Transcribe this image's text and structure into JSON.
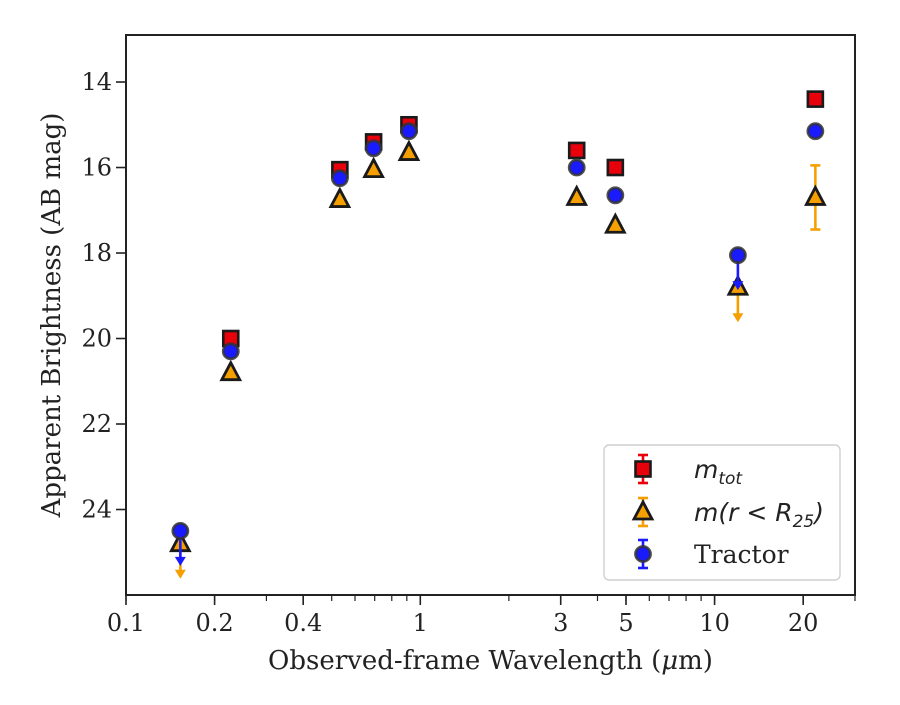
{
  "chart_data": {
    "type": "scatter",
    "xlabel": "Observed-frame Wavelength (μm)",
    "ylabel": "Apparent Brightness (AB mag)",
    "xscale": "log",
    "xlim": [
      0.1,
      30
    ],
    "ylim": [
      26.0,
      12.9
    ],
    "y_inverted": true,
    "x_ticks": [
      0.1,
      0.2,
      0.4,
      1,
      3,
      5,
      10,
      20
    ],
    "x_tick_labels": [
      "0.1",
      "0.2",
      "0.4",
      "1",
      "3",
      "5",
      "10",
      "20"
    ],
    "y_ticks": [
      14,
      16,
      18,
      20,
      22,
      24
    ],
    "y_tick_labels": [
      "14",
      "16",
      "18",
      "20",
      "22",
      "24"
    ],
    "grid": false,
    "legend_position": "lower-right",
    "series": [
      {
        "name": "m_tot",
        "legend_text": "m",
        "legend_sub": "tot",
        "marker": "square",
        "color": "#e8000b",
        "edge_color": "#1a1a1a",
        "points": [
          {
            "x": 0.227,
            "y": 20.0
          },
          {
            "x": 0.533,
            "y": 16.05
          },
          {
            "x": 0.694,
            "y": 15.4
          },
          {
            "x": 0.915,
            "y": 15.0
          },
          {
            "x": 3.4,
            "y": 15.6
          },
          {
            "x": 4.6,
            "y": 16.0
          },
          {
            "x": 22.0,
            "y": 14.4
          }
        ]
      },
      {
        "name": "m(r < R25)",
        "legend_text": "m(r < R",
        "legend_sub": "25",
        "marker": "triangle",
        "color": "#f5a000",
        "edge_color": "#1a1a1a",
        "points": [
          {
            "x": 0.153,
            "y": 24.8,
            "upper_limit": true
          },
          {
            "x": 0.227,
            "y": 20.8
          },
          {
            "x": 0.533,
            "y": 16.75
          },
          {
            "x": 0.694,
            "y": 16.05
          },
          {
            "x": 0.915,
            "y": 15.65
          },
          {
            "x": 3.4,
            "y": 16.7
          },
          {
            "x": 4.6,
            "y": 17.35
          },
          {
            "x": 12.0,
            "y": 18.8,
            "upper_limit": true
          },
          {
            "x": 22.0,
            "y": 16.7,
            "yerr": 0.75
          }
        ]
      },
      {
        "name": "Tractor",
        "marker": "circle",
        "color": "#1a1aff",
        "edge_color": "#333333",
        "points": [
          {
            "x": 0.153,
            "y": 24.5,
            "upper_limit": true
          },
          {
            "x": 0.227,
            "y": 20.3
          },
          {
            "x": 0.533,
            "y": 16.25
          },
          {
            "x": 0.694,
            "y": 15.55
          },
          {
            "x": 0.915,
            "y": 15.15
          },
          {
            "x": 3.4,
            "y": 16.0
          },
          {
            "x": 4.6,
            "y": 16.65
          },
          {
            "x": 12.0,
            "y": 18.05,
            "upper_limit": true
          },
          {
            "x": 22.0,
            "y": 15.15
          }
        ]
      }
    ]
  }
}
